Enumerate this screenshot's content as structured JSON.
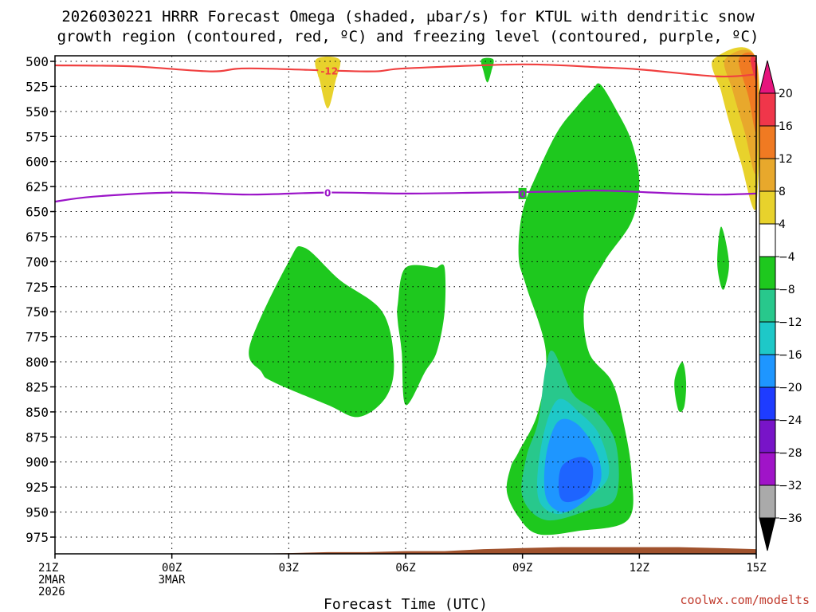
{
  "chart_data": {
    "type": "contour",
    "title_line1": "2026030221 HRRR Forecast Omega (shaded, μbar/s) for KTUL with dendritic snow",
    "title_line2": "growth region (contoured, red, ºC) and freezing level (contoured, purple, ºC)",
    "xlabel": "Forecast Time (UTC)",
    "credit": "coolwx.com/modelts",
    "x_ticks": [
      {
        "hour": 0,
        "label": "21Z",
        "sub1": "2MAR",
        "sub2": "2026"
      },
      {
        "hour": 3,
        "label": "00Z",
        "sub1": "3MAR",
        "sub2": ""
      },
      {
        "hour": 6,
        "label": "03Z",
        "sub1": "",
        "sub2": ""
      },
      {
        "hour": 9,
        "label": "06Z",
        "sub1": "",
        "sub2": ""
      },
      {
        "hour": 12,
        "label": "09Z",
        "sub1": "",
        "sub2": ""
      },
      {
        "hour": 15,
        "label": "12Z",
        "sub1": "",
        "sub2": ""
      },
      {
        "hour": 18,
        "label": "15Z",
        "sub1": "",
        "sub2": ""
      }
    ],
    "x_range_hours": [
      0,
      18
    ],
    "y_range_hpa": [
      500,
      1000
    ],
    "y_ticks": [
      500,
      525,
      550,
      575,
      600,
      625,
      650,
      675,
      700,
      725,
      750,
      775,
      800,
      825,
      850,
      875,
      900,
      925,
      950,
      975
    ],
    "colorbar": {
      "labels": [
        "20",
        "16",
        "12",
        "8",
        "4",
        "−4",
        "−8",
        "−12",
        "−16",
        "−20",
        "−24",
        "−28",
        "−32",
        "−36"
      ],
      "colors": [
        "#f0364a",
        "#f07a22",
        "#e8a82c",
        "#e8d22c",
        "#ffffff",
        "#1ec81e",
        "#28c88c",
        "#1ec8c8",
        "#1e96ff",
        "#1e3cff",
        "#7814c8",
        "#a014c8",
        "#aaaaaa"
      ],
      "top_arrow_color": "#e6147d",
      "bottom_arrow_color": "#000000"
    },
    "dendritic_contour": {
      "label": "-12",
      "color": "#f04040",
      "points": [
        [
          0,
          504
        ],
        [
          2,
          505
        ],
        [
          4,
          510
        ],
        [
          5,
          507
        ],
        [
          8,
          510
        ],
        [
          9,
          507
        ],
        [
          12,
          503
        ],
        [
          14,
          506
        ],
        [
          15,
          508
        ],
        [
          17,
          515
        ],
        [
          18,
          513
        ]
      ]
    },
    "freezing_contour": {
      "label": "0",
      "color": "#9b14c8",
      "points": [
        [
          0,
          640
        ],
        [
          1,
          635
        ],
        [
          3,
          631
        ],
        [
          5,
          633
        ],
        [
          7,
          631
        ],
        [
          9,
          632
        ],
        [
          11,
          631
        ],
        [
          13,
          630
        ],
        [
          14,
          629
        ],
        [
          16,
          632
        ],
        [
          17,
          633
        ],
        [
          18,
          632
        ]
      ]
    },
    "omega_regions": [
      {
        "name": "green-region-03z",
        "value_class": "-4 to -8",
        "color": "#1ec81e",
        "points": [
          [
            5,
            784
          ],
          [
            6,
            700
          ],
          [
            6.4,
            686
          ],
          [
            7.3,
            718
          ],
          [
            8.4,
            750
          ],
          [
            8.7,
            800
          ],
          [
            8.5,
            835
          ],
          [
            7.8,
            855
          ],
          [
            7.0,
            843
          ],
          [
            5.6,
            820
          ],
          [
            5.3,
            810
          ]
        ]
      },
      {
        "name": "green-region-06z",
        "value_class": "-4 to -8",
        "color": "#1ec81e",
        "points": [
          [
            8.8,
            742
          ],
          [
            9.0,
            706
          ],
          [
            9.8,
            706
          ],
          [
            9.8,
            706
          ],
          [
            10.0,
            706
          ],
          [
            10.0,
            750
          ],
          [
            9.8,
            790
          ],
          [
            9.5,
            810
          ],
          [
            9.0,
            843
          ],
          [
            8.9,
            790
          ],
          [
            8.8,
            760
          ]
        ]
      },
      {
        "name": "green-region-09z-main",
        "value_class": "-4 to -8",
        "color": "#1ec81e",
        "points": [
          [
            11.9,
            890
          ],
          [
            12.4,
            850
          ],
          [
            12.6,
            790
          ],
          [
            12.1,
            725
          ],
          [
            11.9,
            695
          ],
          [
            12.0,
            650
          ],
          [
            12.4,
            610
          ],
          [
            12.9,
            570
          ],
          [
            13.4,
            545
          ],
          [
            13.8,
            528
          ],
          [
            14.0,
            523
          ],
          [
            14.4,
            548
          ],
          [
            14.8,
            580
          ],
          [
            15.0,
            620
          ],
          [
            14.8,
            660
          ],
          [
            14.1,
            700
          ],
          [
            13.6,
            740
          ],
          [
            13.7,
            790
          ],
          [
            14.3,
            820
          ],
          [
            14.6,
            862
          ],
          [
            14.8,
            912
          ],
          [
            14.7,
            958
          ],
          [
            13.4,
            969
          ],
          [
            12.4,
            972
          ],
          [
            11.9,
            955
          ],
          [
            11.6,
            930
          ],
          [
            11.7,
            905
          ]
        ]
      },
      {
        "name": "teal-region-09z",
        "value_class": "-8 to -12",
        "color": "#28c88c",
        "points": [
          [
            12.4,
            860
          ],
          [
            12.6,
            805
          ],
          [
            12.8,
            790
          ],
          [
            13.3,
            832
          ],
          [
            13.9,
            850
          ],
          [
            14.4,
            882
          ],
          [
            14.4,
            935
          ],
          [
            13.7,
            948
          ],
          [
            12.6,
            958
          ],
          [
            12.0,
            935
          ],
          [
            12.1,
            895
          ]
        ]
      },
      {
        "name": "cyan-region-09z",
        "value_class": "-12 to -16",
        "color": "#1ec8c8",
        "points": [
          [
            12.5,
            880
          ],
          [
            12.9,
            838
          ],
          [
            13.5,
            852
          ],
          [
            14.0,
            875
          ],
          [
            14.2,
            915
          ],
          [
            13.5,
            940
          ],
          [
            12.9,
            952
          ],
          [
            12.4,
            935
          ]
        ]
      },
      {
        "name": "lightblue-region-09z",
        "value_class": "-16 to -20",
        "color": "#1e96ff",
        "points": [
          [
            12.6,
            895
          ],
          [
            12.9,
            860
          ],
          [
            13.4,
            862
          ],
          [
            13.9,
            890
          ],
          [
            14.0,
            920
          ],
          [
            13.5,
            942
          ],
          [
            13.0,
            950
          ],
          [
            12.6,
            935
          ]
        ]
      },
      {
        "name": "blue-region-09z",
        "value_class": "-20 to -24",
        "color": "#1e64ff",
        "points": [
          [
            13.0,
            905
          ],
          [
            13.5,
            895
          ],
          [
            13.8,
            905
          ],
          [
            13.7,
            930
          ],
          [
            13.2,
            940
          ],
          [
            12.95,
            933
          ]
        ]
      },
      {
        "name": "green-region-08z-top",
        "value_class": "-4 to -8",
        "color": "#1ec81e",
        "points": [
          [
            10.95,
            498
          ],
          [
            11.25,
            498
          ],
          [
            11.2,
            510
          ],
          [
            11.1,
            521
          ],
          [
            11.0,
            510
          ]
        ]
      },
      {
        "name": "green-region-14z-blob",
        "value_class": "-4 to -8",
        "color": "#1ec81e",
        "points": [
          [
            17.0,
            700
          ],
          [
            17.1,
            665
          ],
          [
            17.3,
            700
          ],
          [
            17.2,
            725
          ],
          [
            17.1,
            725
          ]
        ]
      },
      {
        "name": "green-region-13z-blob",
        "value_class": "-4 to -8",
        "color": "#1ec81e",
        "points": [
          [
            15.9,
            820
          ],
          [
            16.1,
            800
          ],
          [
            16.2,
            820
          ],
          [
            16.15,
            845
          ],
          [
            16.0,
            848
          ]
        ]
      },
      {
        "name": "yellow-region-04z-top",
        "value_class": "4 to 8",
        "color": "#e8d22c",
        "points": [
          [
            6.7,
            498
          ],
          [
            7.3,
            498
          ],
          [
            7.2,
            520
          ],
          [
            7.0,
            547
          ],
          [
            6.8,
            520
          ]
        ]
      },
      {
        "name": "yellow-region-15z-right",
        "value_class": "4 to 8",
        "color": "#e8d22c",
        "points": [
          [
            16.9,
            498
          ],
          [
            18.0,
            498
          ],
          [
            18.0,
            645
          ],
          [
            17.6,
            600
          ],
          [
            17.3,
            560
          ],
          [
            17.1,
            530
          ]
        ]
      },
      {
        "name": "gold-region-15z-right",
        "value_class": "8 to 12",
        "color": "#e8a82c",
        "points": [
          [
            17.2,
            498
          ],
          [
            18.0,
            498
          ],
          [
            18.0,
            610
          ],
          [
            17.7,
            570
          ],
          [
            17.4,
            530
          ]
        ]
      },
      {
        "name": "orange-region-15z-right",
        "value_class": "12 to 16",
        "color": "#f07a22",
        "points": [
          [
            17.55,
            498
          ],
          [
            18.0,
            498
          ],
          [
            18.0,
            570
          ],
          [
            17.8,
            535
          ]
        ]
      },
      {
        "name": "red-region-15z-right",
        "value_class": "16 to 20",
        "color": "#f0364a",
        "points": [
          [
            17.85,
            498
          ],
          [
            18.0,
            498
          ],
          [
            18.0,
            520
          ]
        ]
      }
    ],
    "terrain": {
      "color": "#a0522d",
      "points": [
        [
          0,
          993
        ],
        [
          5,
          993
        ],
        [
          6,
          991
        ],
        [
          7,
          990
        ],
        [
          8,
          990
        ],
        [
          9,
          989
        ],
        [
          10,
          989
        ],
        [
          11,
          987
        ],
        [
          12,
          986
        ],
        [
          13,
          985
        ],
        [
          14,
          985
        ],
        [
          16,
          985
        ],
        [
          17,
          986
        ],
        [
          18,
          987
        ]
      ]
    }
  }
}
